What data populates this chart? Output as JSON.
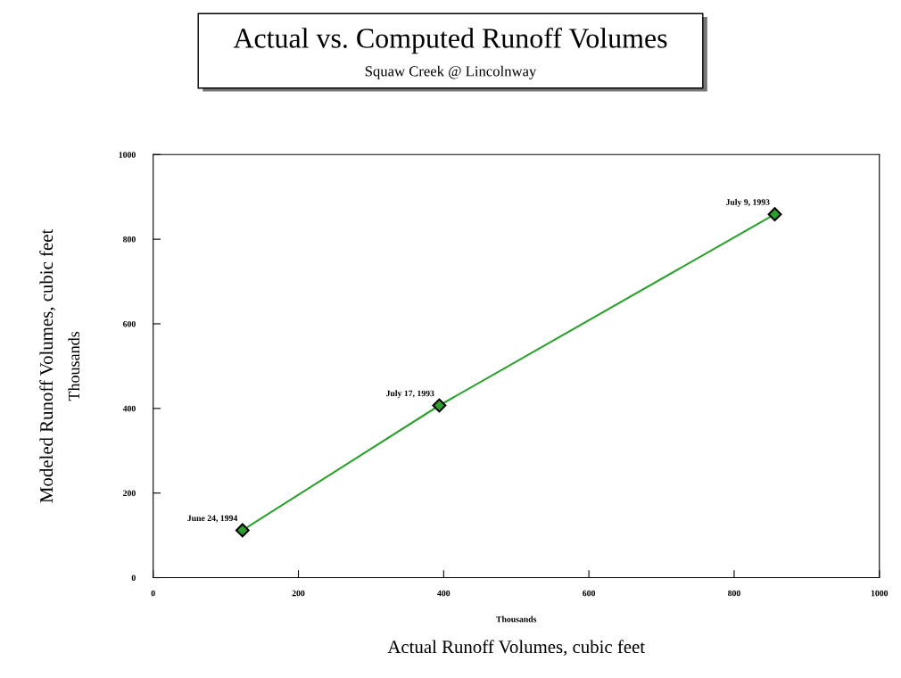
{
  "chart_data": {
    "type": "line",
    "title": "Actual vs. Computed Runoff Volumes",
    "subtitle": "Squaw Creek @ Lincolnway",
    "xlabel": "Actual Runoff Volumes, cubic feet",
    "ylabel": "Modeled Runoff Volumes, cubic feet",
    "x": [
      123,
      394,
      856
    ],
    "series": [
      {
        "color": "#2ca02c",
        "values": [
          112,
          407,
          859
        ]
      }
    ],
    "xlim": [
      0,
      1000
    ],
    "xticks": [
      0,
      200,
      400,
      600,
      800,
      1000
    ],
    "ylim": [
      0,
      1000
    ],
    "yticks": [
      0,
      200,
      400,
      600,
      800,
      1000
    ],
    "grid": false,
    "legend": false,
    "marker": "diamond",
    "line_style": "solid",
    "annotations": [
      {
        "text": "June 24, 1994",
        "x": 123,
        "y": 112
      },
      {
        "text": "July 17, 1993",
        "x": 394,
        "y": 407
      },
      {
        "text": "July 9, 1993",
        "x": 856,
        "y": 859
      },
      "Thousands",
      "Thousands"
    ]
  }
}
